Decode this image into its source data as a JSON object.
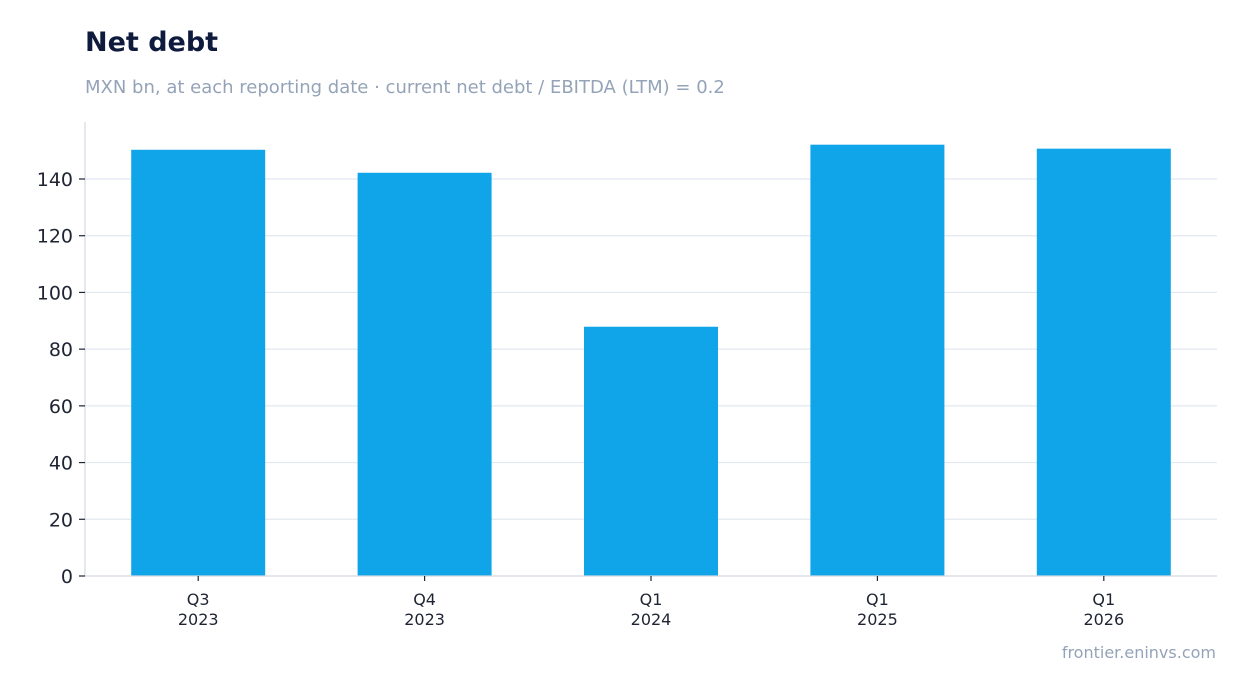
{
  "title": "Net debt",
  "subtitle": "MXN bn, at each reporting date · current net debt / EBITDA (LTM) = 0.2",
  "footer": "frontier.eninvs.com",
  "colors": {
    "bar": "#10a5e8",
    "grid": "#e2e8f0",
    "axis": "#d4d9e1",
    "title": "#0f1b3d",
    "muted": "#94a3b8"
  },
  "chart_data": {
    "type": "bar",
    "categories": [
      [
        "Q3",
        "2023"
      ],
      [
        "Q4",
        "2023"
      ],
      [
        "Q1",
        "2024"
      ],
      [
        "Q1",
        "2025"
      ],
      [
        "Q1",
        "2026"
      ]
    ],
    "values": [
      150.3,
      142.2,
      87.9,
      152.1,
      150.7
    ],
    "title": "Net debt",
    "xlabel": "",
    "ylabel": "",
    "ylim": [
      0,
      160
    ],
    "yticks": [
      0,
      20,
      40,
      60,
      80,
      100,
      120,
      140
    ],
    "grid": true
  }
}
